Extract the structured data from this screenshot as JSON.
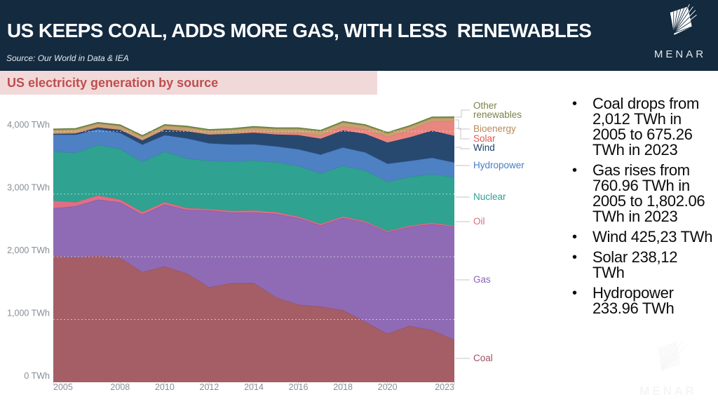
{
  "header": {
    "title": "US KEEPS COAL, ADDS MORE GAS, WITH LESS  RENEWABLES",
    "source": "Source: Our World in Data & IEA",
    "brand": "MENAR",
    "bg_color": "#132a3f"
  },
  "subtitle": {
    "text": "US electricity generation by source",
    "text_color": "#bf4e4e",
    "bg_color": "#f2d9d9"
  },
  "chart_data": {
    "type": "area",
    "stacked": true,
    "title": "US electricity generation by source",
    "xlabel": "",
    "ylabel": "TWh",
    "ylim": [
      0,
      4400
    ],
    "grid": "dotted-horizontal",
    "legend_position": "right",
    "x": [
      2005,
      2006,
      2007,
      2008,
      2009,
      2010,
      2011,
      2012,
      2013,
      2014,
      2015,
      2016,
      2017,
      2018,
      2019,
      2020,
      2021,
      2022,
      2023
    ],
    "x_ticks": [
      "2005",
      "2008",
      "2010",
      "2012",
      "2014",
      "2016",
      "2018",
      "2020",
      "2023"
    ],
    "y_ticks": [
      {
        "value": 0,
        "label": "0 TWh"
      },
      {
        "value": 1000,
        "label": "1,000 TWh"
      },
      {
        "value": 2000,
        "label": "2,000 TWh"
      },
      {
        "value": 3000,
        "label": "3,000 TWh"
      },
      {
        "value": 4000,
        "label": "4,000 TWh"
      }
    ],
    "series": [
      {
        "key": "coal",
        "label": "Coal",
        "color": "#a55e66",
        "edge": "#9a4f5c",
        "label_color": "#a04f62",
        "values": [
          2012,
          1990,
          2016,
          1985,
          1755,
          1847,
          1733,
          1514,
          1581,
          1582,
          1352,
          1239,
          1206,
          1150,
          966,
          774,
          899,
          832,
          675
        ]
      },
      {
        "key": "gas",
        "label": "Gas",
        "color": "#8f6bb5",
        "edge": "#7e58a8",
        "label_color": "#8a63b8",
        "values": [
          761,
          816,
          897,
          883,
          921,
          988,
          1014,
          1226,
          1124,
          1127,
          1333,
          1378,
          1296,
          1468,
          1582,
          1617,
          1579,
          1689,
          1802
        ]
      },
      {
        "key": "oil",
        "label": "Oil",
        "color": "#dd7086",
        "edge": "#d05f74",
        "label_color": "#da6c80",
        "values": [
          122,
          64,
          66,
          46,
          39,
          37,
          30,
          23,
          27,
          30,
          28,
          24,
          21,
          25,
          19,
          17,
          19,
          23,
          16
        ]
      },
      {
        "key": "nuclear",
        "label": "Nuclear",
        "color": "#2fa291",
        "edge": "#269384",
        "label_color": "#2da193",
        "values": [
          782,
          787,
          806,
          806,
          799,
          807,
          790,
          769,
          789,
          797,
          797,
          806,
          805,
          807,
          809,
          790,
          778,
          772,
          775
        ]
      },
      {
        "key": "hydropower",
        "label": "Hydropower",
        "color": "#4e80c4",
        "edge": "#3f72b8",
        "label_color": "#4a7cc2",
        "values": [
          270,
          289,
          248,
          255,
          273,
          260,
          319,
          276,
          269,
          259,
          249,
          266,
          300,
          292,
          288,
          285,
          252,
          262,
          234
        ]
      },
      {
        "key": "wind",
        "label": "Wind",
        "color": "#28496f",
        "edge": "#1f3d61",
        "label_color": "#1f4068",
        "values": [
          18,
          27,
          35,
          55,
          74,
          95,
          120,
          141,
          168,
          182,
          191,
          227,
          254,
          273,
          295,
          338,
          378,
          434,
          425
        ]
      },
      {
        "key": "solar",
        "label": "Solar",
        "color": "#ea8680",
        "edge": "#e0776e",
        "label_color": "#e2574f",
        "values": [
          1,
          1,
          1,
          1,
          1,
          1,
          2,
          4,
          9,
          18,
          25,
          36,
          53,
          63,
          72,
          89,
          115,
          146,
          238
        ]
      },
      {
        "key": "bioenergy",
        "label": "Bioenergy",
        "color": "#c7a172",
        "edge": "#b08c55",
        "label_color": "#b9885a",
        "values": [
          54,
          55,
          56,
          55,
          54,
          56,
          57,
          58,
          60,
          64,
          64,
          63,
          63,
          62,
          58,
          56,
          55,
          53,
          49
        ]
      },
      {
        "key": "other_renewables",
        "label": "Other renewables",
        "color": "#8b9252",
        "edge": "#5f7e3e",
        "label_color": "#798447",
        "values": [
          16,
          16,
          16,
          17,
          17,
          17,
          17,
          17,
          17,
          17,
          17,
          17,
          18,
          18,
          18,
          17,
          16,
          17,
          17
        ]
      }
    ],
    "axis_text_color": "#878e96"
  },
  "bullet_marker": "•",
  "bullets": [
    {
      "text": "Coal drops from\n2,012 TWh in\n2005 to 675.26\nTWh in 2023"
    },
    {
      "text": "Gas rises from\n760.96 TWh in\n2005 to 1,802.06\nTWh in 2023"
    },
    {
      "text": "Wind 425,23 TWh"
    },
    {
      "text": "Solar 238,12\nTWh"
    },
    {
      "text": "Hydropower\n233.96 TWh"
    }
  ],
  "watermark": {
    "brand": "MENAR"
  }
}
